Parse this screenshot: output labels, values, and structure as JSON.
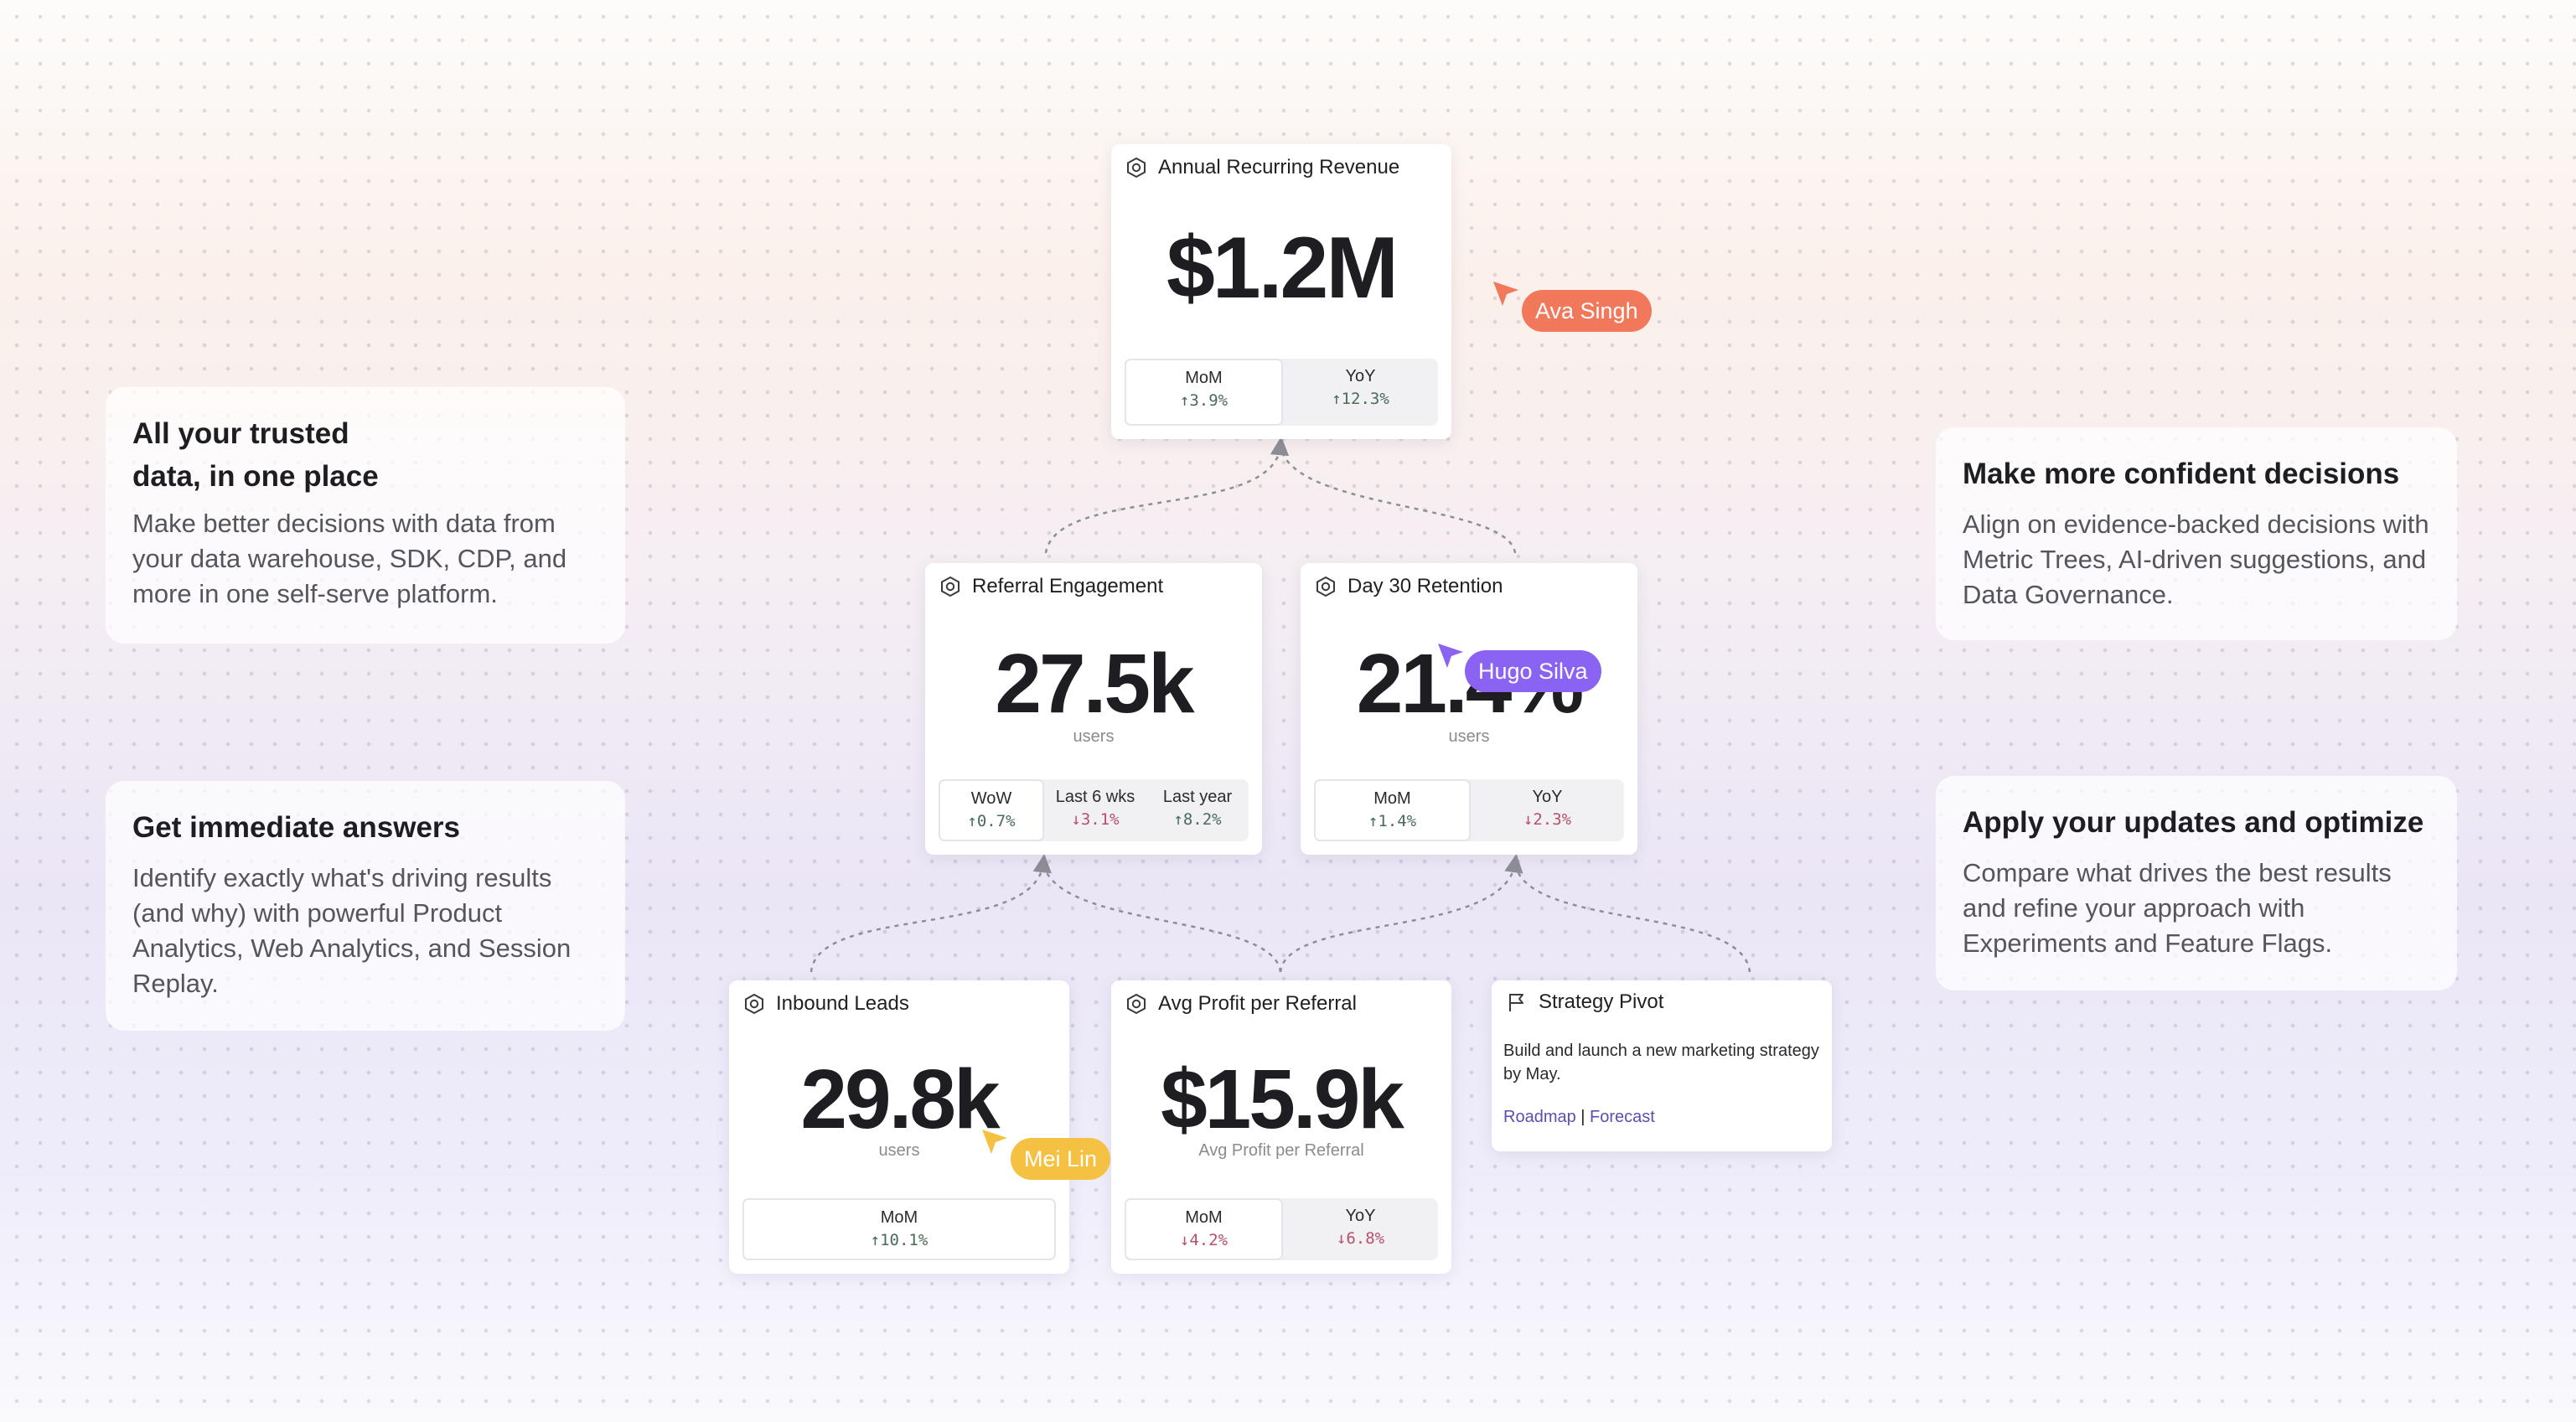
{
  "side_cards": {
    "trusted": {
      "title_line1": "All your trusted",
      "title_line2": "data, in one place",
      "body": "Make better decisions with data from your data warehouse, SDK, CDP, and more in one self-serve platform."
    },
    "answers": {
      "title": "Get immediate answers",
      "body": "Identify exactly what's driving results (and why) with powerful Product Analytics, Web Analytics, and Session Replay."
    },
    "confident": {
      "title": "Make more confident decisions",
      "body": "Align on evidence-backed decisions with Metric Trees, AI-driven suggestions, and Data Governance."
    },
    "optimize": {
      "title": "Apply your updates and optimize",
      "body": "Compare what drives the best results and refine your approach with Experiments and Feature Flags."
    }
  },
  "metrics": {
    "arr": {
      "title": "Annual Recurring Revenue",
      "value": "$1.2M",
      "periods": [
        {
          "label": "MoM",
          "value": "↑3.9%"
        },
        {
          "label": "YoY",
          "value": "↑12.3%"
        }
      ]
    },
    "referral": {
      "title": "Referral Engagement",
      "value": "27.5k",
      "unit": "users",
      "periods": [
        {
          "label": "WoW",
          "value": "↑0.7%"
        },
        {
          "label": "Last 6 wks",
          "value": "↓3.1%"
        },
        {
          "label": "Last year",
          "value": "↑8.2%"
        }
      ]
    },
    "retention": {
      "title": "Day 30 Retention",
      "value": "21.4%",
      "unit": "users",
      "periods": [
        {
          "label": "MoM",
          "value": "↑1.4%"
        },
        {
          "label": "YoY",
          "value": "↓2.3%"
        }
      ]
    },
    "leads": {
      "title": "Inbound Leads",
      "value": "29.8k",
      "unit": "users",
      "periods": [
        {
          "label": "MoM",
          "value": "↑10.1%"
        }
      ]
    },
    "profit": {
      "title": "Avg Profit per Referral",
      "value": "$15.9k",
      "unit": "Avg Profit per Referral",
      "periods": [
        {
          "label": "MoM",
          "value": "↓4.2%"
        },
        {
          "label": "YoY",
          "value": "↓6.8%"
        }
      ]
    }
  },
  "strategy": {
    "title": "Strategy Pivot",
    "body": "Build and launch a new marketing strategy by May.",
    "link1": "Roadmap",
    "separator": "|",
    "link2": "Forecast"
  },
  "cursors": {
    "ava": {
      "name": "Ava Singh",
      "color": "#f1785a"
    },
    "hugo": {
      "name": "Hugo Silva",
      "color": "#8a63f2"
    },
    "mei": {
      "name": "Mei Lin",
      "color": "#f5c142"
    }
  },
  "colors": {
    "up": "#4a6b58",
    "down": "#b8506a",
    "link": "#5b4fb3",
    "connector": "#8e8e96"
  },
  "icons": {
    "metric": "hexagon-icon",
    "strategy": "flag-icon",
    "cursor": "pointer-arrow-icon"
  }
}
